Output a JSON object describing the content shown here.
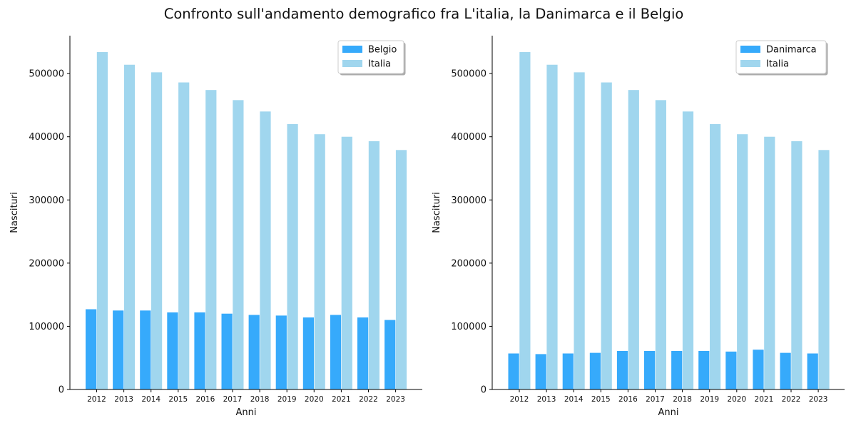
{
  "figure_title": "Confronto sull'andamento demografico fra L'italia, la Danimarca e il Belgio",
  "colors": {
    "Belgio": "#36AAFB",
    "Danimarca": "#36AAFB",
    "Italia": "#A0D6EE"
  },
  "chart_data": [
    {
      "type": "bar",
      "title": "",
      "xlabel": "Anni",
      "ylabel": "Nascituri",
      "ylim": [
        0,
        560000
      ],
      "yticks": [
        0,
        100000,
        200000,
        300000,
        400000,
        500000
      ],
      "grid": false,
      "legend_position": "top-right",
      "categories": [
        "2012",
        "2013",
        "2014",
        "2015",
        "2016",
        "2017",
        "2018",
        "2019",
        "2020",
        "2021",
        "2022",
        "2023"
      ],
      "series": [
        {
          "name": "Belgio",
          "color": "#36AAFB",
          "values": [
            127000,
            125000,
            125000,
            122000,
            122000,
            120000,
            118000,
            117000,
            114000,
            118000,
            114000,
            110000
          ]
        },
        {
          "name": "Italia",
          "color": "#A0D6EE",
          "values": [
            534000,
            514000,
            502000,
            486000,
            474000,
            458000,
            440000,
            420000,
            404000,
            400000,
            393000,
            379000
          ]
        }
      ]
    },
    {
      "type": "bar",
      "title": "",
      "xlabel": "Anni",
      "ylabel": "Nascituri",
      "ylim": [
        0,
        560000
      ],
      "yticks": [
        0,
        100000,
        200000,
        300000,
        400000,
        500000
      ],
      "grid": false,
      "legend_position": "top-right",
      "categories": [
        "2012",
        "2013",
        "2014",
        "2015",
        "2016",
        "2017",
        "2018",
        "2019",
        "2020",
        "2021",
        "2022",
        "2023"
      ],
      "series": [
        {
          "name": "Danimarca",
          "color": "#36AAFB",
          "values": [
            57000,
            56000,
            57000,
            58000,
            61000,
            61000,
            61000,
            61000,
            60000,
            63000,
            58000,
            57000
          ]
        },
        {
          "name": "Italia",
          "color": "#A0D6EE",
          "values": [
            534000,
            514000,
            502000,
            486000,
            474000,
            458000,
            440000,
            420000,
            404000,
            400000,
            393000,
            379000
          ]
        }
      ]
    }
  ]
}
